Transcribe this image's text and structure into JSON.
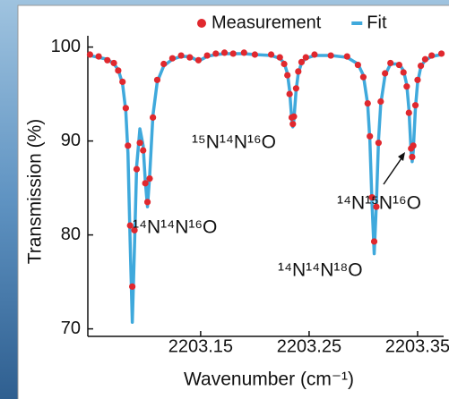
{
  "chart_data": {
    "type": "line",
    "x_label": "Wavenumber (cm⁻¹)",
    "y_label": "Transmission (%)",
    "x": [
      2203.048,
      2203.056,
      2203.064,
      2203.07,
      2203.074,
      2203.078,
      2203.081,
      2203.083,
      2203.085,
      2203.087,
      2203.089,
      2203.091,
      2203.094,
      2203.097,
      2203.099,
      2203.101,
      2203.103,
      2203.106,
      2203.11,
      2203.116,
      2203.124,
      2203.132,
      2203.14,
      2203.148,
      2203.156,
      2203.164,
      2203.172,
      2203.18,
      2203.19,
      2203.2,
      2203.215,
      2203.223,
      2203.227,
      2203.23,
      2203.232,
      2203.234,
      2203.235,
      2203.236,
      2203.238,
      2203.24,
      2203.243,
      2203.247,
      2203.255,
      2203.27,
      2203.285,
      2203.295,
      2203.3,
      2203.304,
      2203.306,
      2203.308,
      2203.31,
      2203.312,
      2203.314,
      2203.316,
      2203.32,
      2203.325,
      2203.333,
      2203.337,
      2203.34,
      2203.342,
      2203.344,
      2203.345,
      2203.346,
      2203.348,
      2203.35,
      2203.353,
      2203.357,
      2203.363,
      2203.372
    ],
    "series": [
      {
        "name": "Measurement",
        "color": "#e0282e",
        "mode": "markers",
        "values": [
          99.2,
          99.0,
          98.6,
          98.3,
          97.5,
          96.3,
          93.5,
          89.5,
          81.0,
          74.5,
          80.5,
          87.0,
          89.8,
          89.0,
          85.5,
          83.5,
          86.0,
          92.5,
          96.5,
          98.2,
          98.8,
          99.1,
          98.9,
          98.6,
          99.1,
          99.3,
          99.4,
          99.3,
          99.4,
          99.2,
          99.2,
          98.9,
          98.2,
          97.0,
          95.0,
          92.5,
          91.8,
          92.6,
          95.6,
          97.4,
          98.4,
          98.9,
          99.2,
          99.1,
          99.0,
          98.1,
          96.8,
          94.0,
          90.5,
          84.0,
          79.3,
          83.0,
          89.8,
          94.2,
          97.2,
          98.3,
          98.1,
          97.3,
          95.8,
          93.0,
          89.2,
          88.3,
          89.5,
          93.8,
          96.5,
          98.0,
          98.7,
          99.1,
          99.3
        ]
      },
      {
        "name": "Fit",
        "color": "#3fa9dc",
        "mode": "lines",
        "values": [
          99.1,
          98.9,
          98.7,
          98.2,
          97.6,
          96.1,
          93.2,
          88.7,
          79.3,
          70.7,
          78.7,
          87.3,
          91.3,
          89.5,
          85.7,
          83.0,
          86.3,
          92.7,
          96.3,
          98.0,
          98.7,
          99.0,
          99.0,
          98.5,
          99.0,
          99.2,
          99.3,
          99.3,
          99.3,
          99.2,
          99.1,
          98.8,
          98.3,
          97.2,
          95.4,
          92.3,
          91.5,
          92.3,
          95.4,
          97.2,
          98.3,
          98.8,
          99.1,
          99.1,
          98.9,
          98.2,
          97.0,
          93.9,
          90.1,
          83.3,
          78.0,
          83.3,
          90.1,
          93.9,
          97.0,
          98.2,
          98.2,
          97.5,
          96.0,
          93.4,
          88.9,
          87.8,
          88.9,
          93.5,
          96.2,
          97.9,
          98.6,
          99.0,
          99.2
        ]
      }
    ],
    "xlim": [
      2203.046,
      2203.374
    ],
    "ylim": [
      69.2,
      101.2
    ],
    "xticks": [
      2203.15,
      2203.25,
      2203.35
    ],
    "yticks": [
      70,
      80,
      90,
      100
    ],
    "legend": "top-right",
    "annotations": [
      {
        "text": "¹⁵N¹⁴N¹⁶O"
      },
      {
        "text": "¹⁴N¹⁴N¹⁶O"
      },
      {
        "text": "¹⁴N¹⁴N¹⁸O"
      },
      {
        "text": "¹⁴N¹⁵N¹⁶O"
      }
    ]
  }
}
